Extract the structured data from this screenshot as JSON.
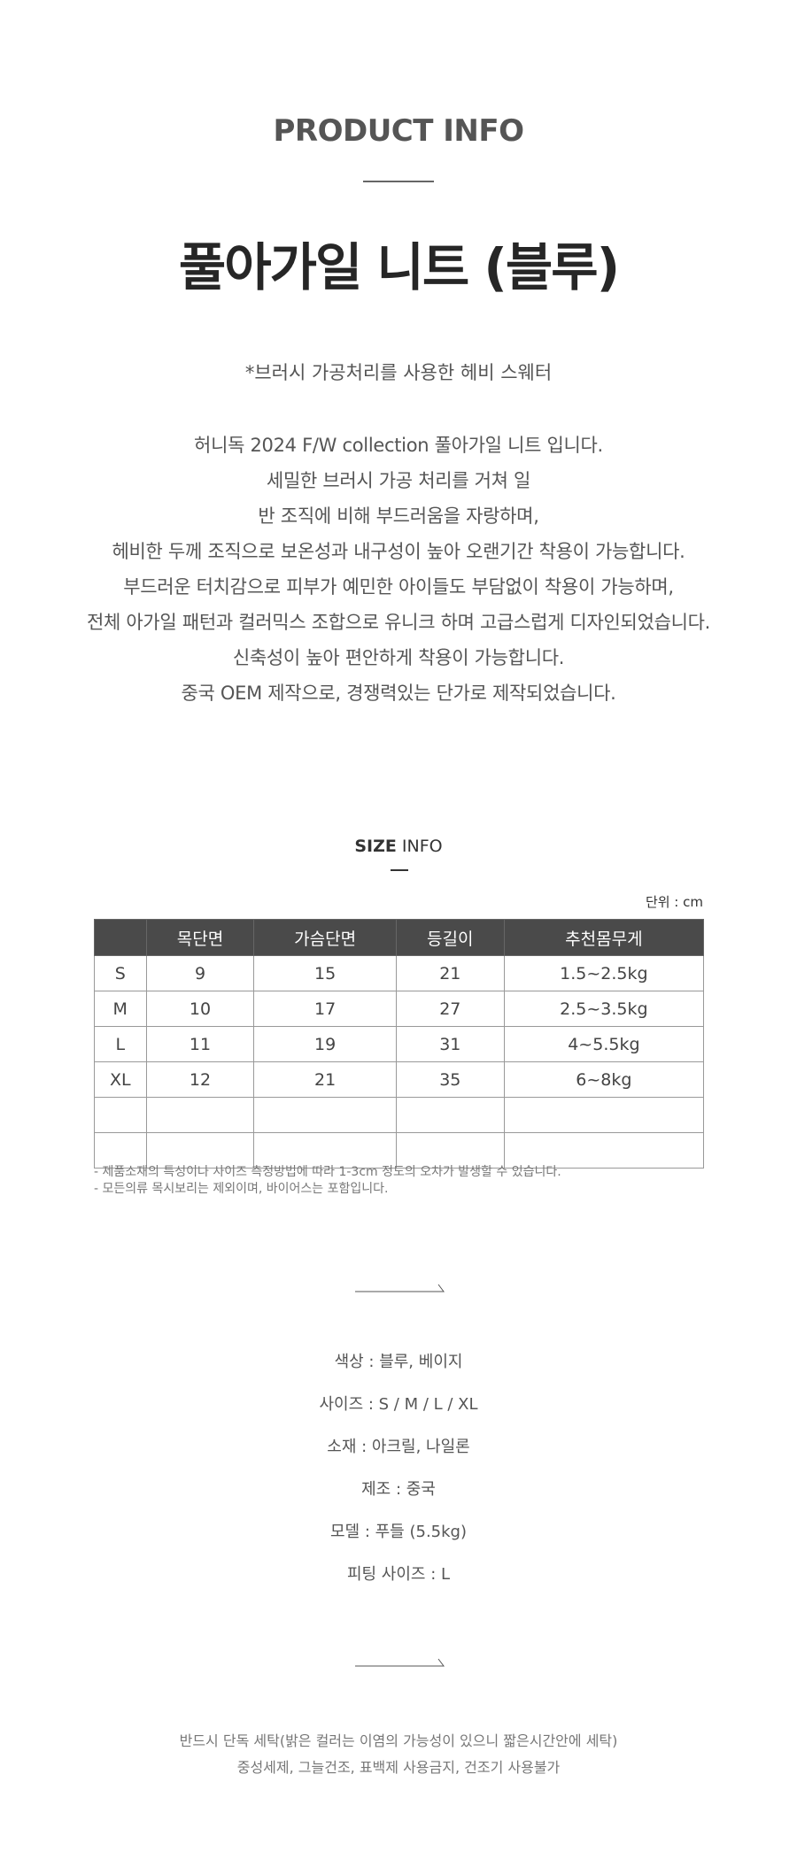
{
  "header": {
    "eyebrow": "PRODUCT INFO",
    "title": "풀아가일 니트 (블루)"
  },
  "intro": {
    "subtitle": "*브러시 가공처리를 사용한 헤비 스웨터",
    "lines": [
      "허니독 2024 F/W collection 풀아가일 니트 입니다.",
      "세밀한 브러시 가공 처리를 거쳐 일",
      "반 조직에 비해 부드러움을 자랑하며,",
      "헤비한 두께 조직으로 보온성과 내구성이 높아 오랜기간 착용이 가능합니다.",
      "부드러운 터치감으로 피부가 예민한 아이들도 부담없이 착용이 가능하며,",
      "전체 아가일 패턴과 컬러믹스 조합으로 유니크 하며 고급스럽게 디자인되었습니다.",
      "신축성이 높아 편안하게 착용이 가능합니다.",
      "중국 OEM 제작으로, 경쟁력있는 단가로 제작되었습니다."
    ]
  },
  "size_info": {
    "heading_bold": "SIZE",
    "heading_rest": " INFO",
    "unit": "단위 : cm",
    "columns": [
      "",
      "목단면",
      "가슴단면",
      "등길이",
      "추천몸무게"
    ],
    "rows": [
      [
        "S",
        "9",
        "15",
        "21",
        "1.5~2.5kg"
      ],
      [
        "M",
        "10",
        "17",
        "27",
        "2.5~3.5kg"
      ],
      [
        "L",
        "11",
        "19",
        "31",
        "4~5.5kg"
      ],
      [
        "XL",
        "12",
        "21",
        "35",
        "6~8kg"
      ],
      [
        "",
        "",
        "",
        "",
        ""
      ],
      [
        "",
        "",
        "",
        "",
        ""
      ]
    ],
    "notes": [
      "- 제품소재의 특성이나 사이즈 측정방법에 따라 1-3cm 정도의 오차가 발생할 수 있습니다.",
      "- 모든의류 목시보리는 제외이며, 바이어스는 포함입니다."
    ]
  },
  "details": [
    "색상 : 블루, 베이지",
    "사이즈 : S / M / L / XL",
    "소재 : 아크릴, 나일론",
    "제조 : 중국",
    "모델 : 푸들 (5.5kg)",
    "피팅 사이즈 : L"
  ],
  "care": [
    "반드시 단독 세탁(밝은 컬러는 이염의 가능성이 있으니 짧은시간안에 세탁)",
    "중성세제, 그늘건조, 표백제 사용금지, 건조기 사용불가"
  ],
  "icons": {
    "divider": "arrow-right-line-icon"
  },
  "colors": {
    "table_header": "#4a4a4a",
    "title": "#262626"
  }
}
